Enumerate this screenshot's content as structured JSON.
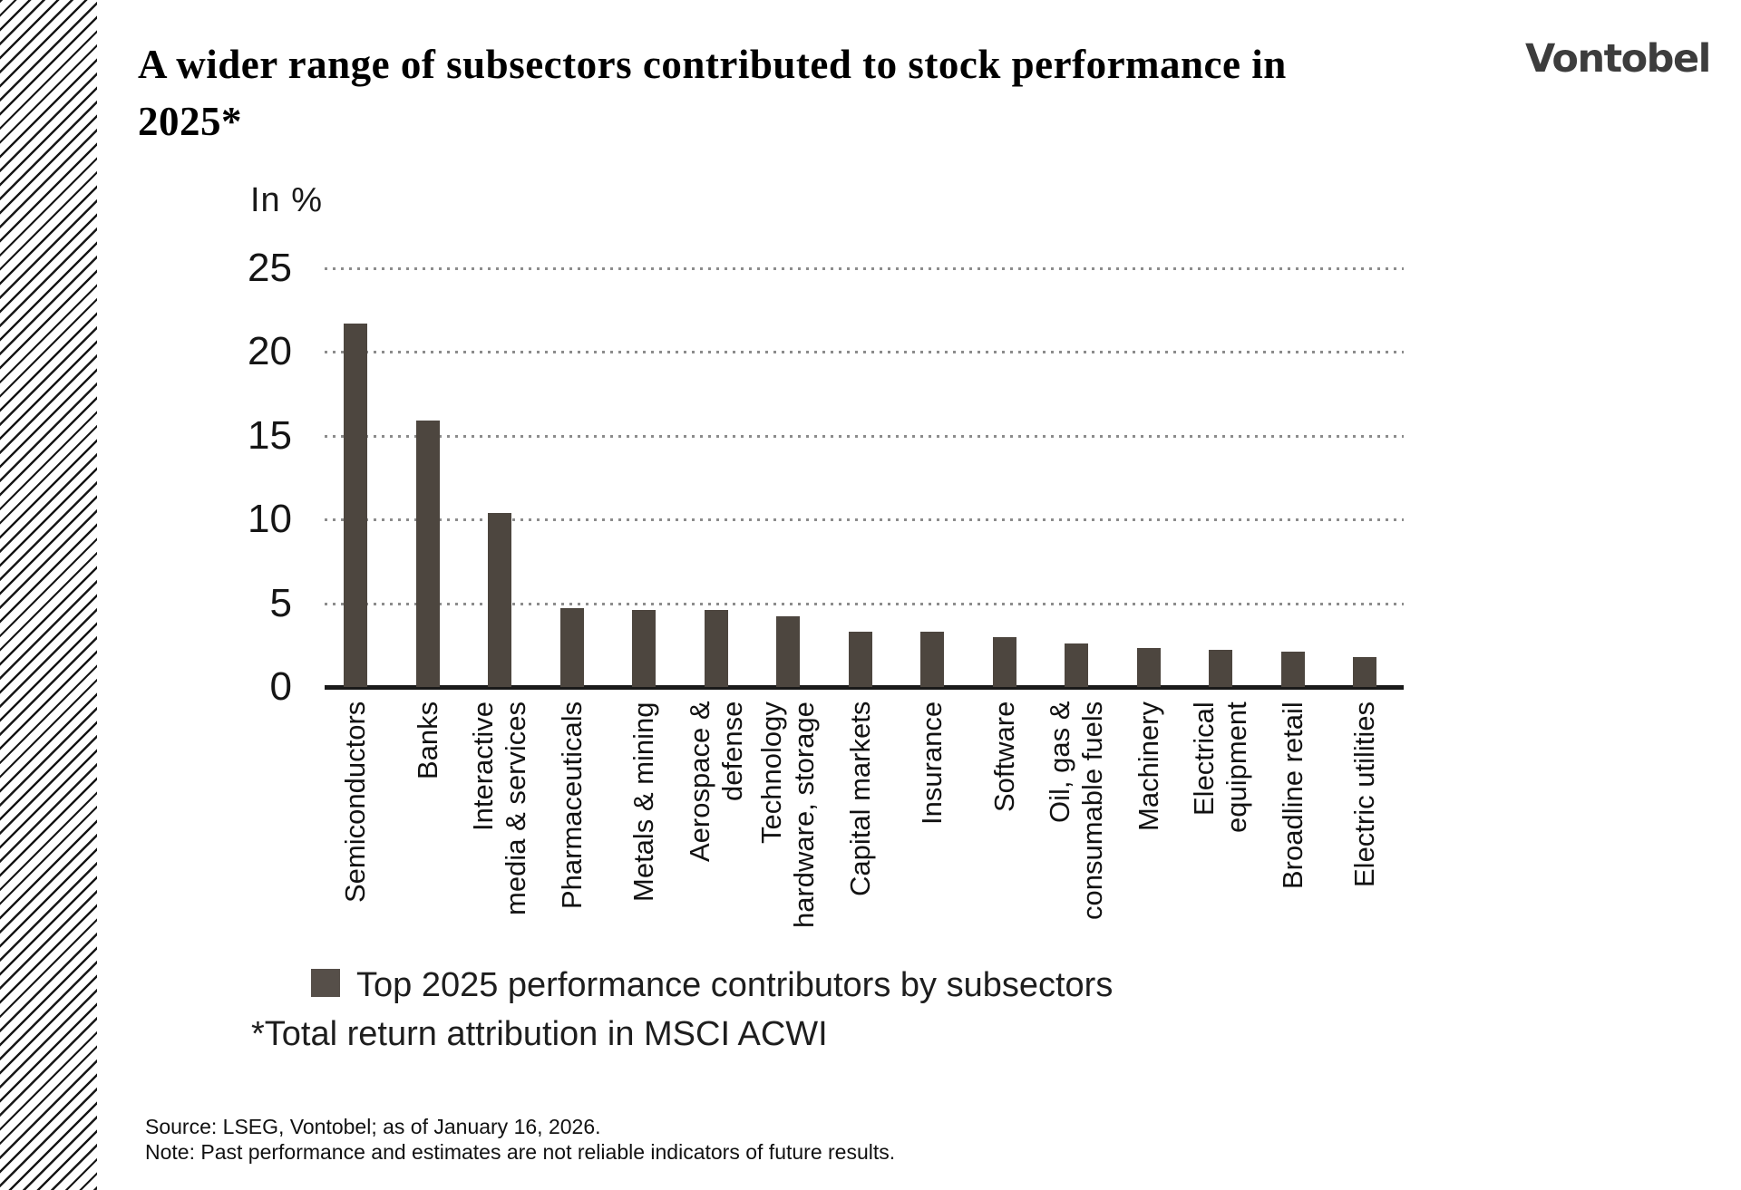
{
  "brand": {
    "logo_text": "Vontobel"
  },
  "header": {
    "title": "A wider range of subsectors contributed to stock performance in\n2025*"
  },
  "chart_data": {
    "type": "bar",
    "unit_label": "In %",
    "categories": [
      "Semiconductors",
      "Banks",
      "Interactive\nmedia & services",
      "Pharmaceuticals",
      "Metals & mining",
      "Aerospace &\ndefense",
      "Technology\nhardware, storage",
      "Capital markets",
      "Insurance",
      "Software",
      "Oil, gas &\nconsumable fuels",
      "Machinery",
      "Electrical\nequipment",
      "Broadline retail",
      "Electric utilities"
    ],
    "values": [
      21.7,
      15.9,
      10.4,
      4.7,
      4.6,
      4.6,
      4.2,
      3.3,
      3.3,
      3.0,
      2.6,
      2.3,
      2.2,
      2.1,
      1.8
    ],
    "yticks": [
      25,
      20,
      15,
      10,
      5,
      0
    ],
    "ylim": [
      0,
      25
    ],
    "grid": "dotted-horizontal",
    "legend_position": "bottom-left",
    "bar_color": "#4d463f",
    "gridline_color": "#8c8c8c",
    "legend": [
      {
        "label": "Top 2025 performance contributors by subsectors",
        "swatch_color": "#564f49"
      }
    ],
    "footnote": "*Total return attribution in MSCI ACWI"
  },
  "footer": {
    "source_line": "Source: LSEG, Vontobel; as of January 16, 2026.",
    "note_line": "Note: Past performance and estimates are not reliable indicators of future results."
  }
}
